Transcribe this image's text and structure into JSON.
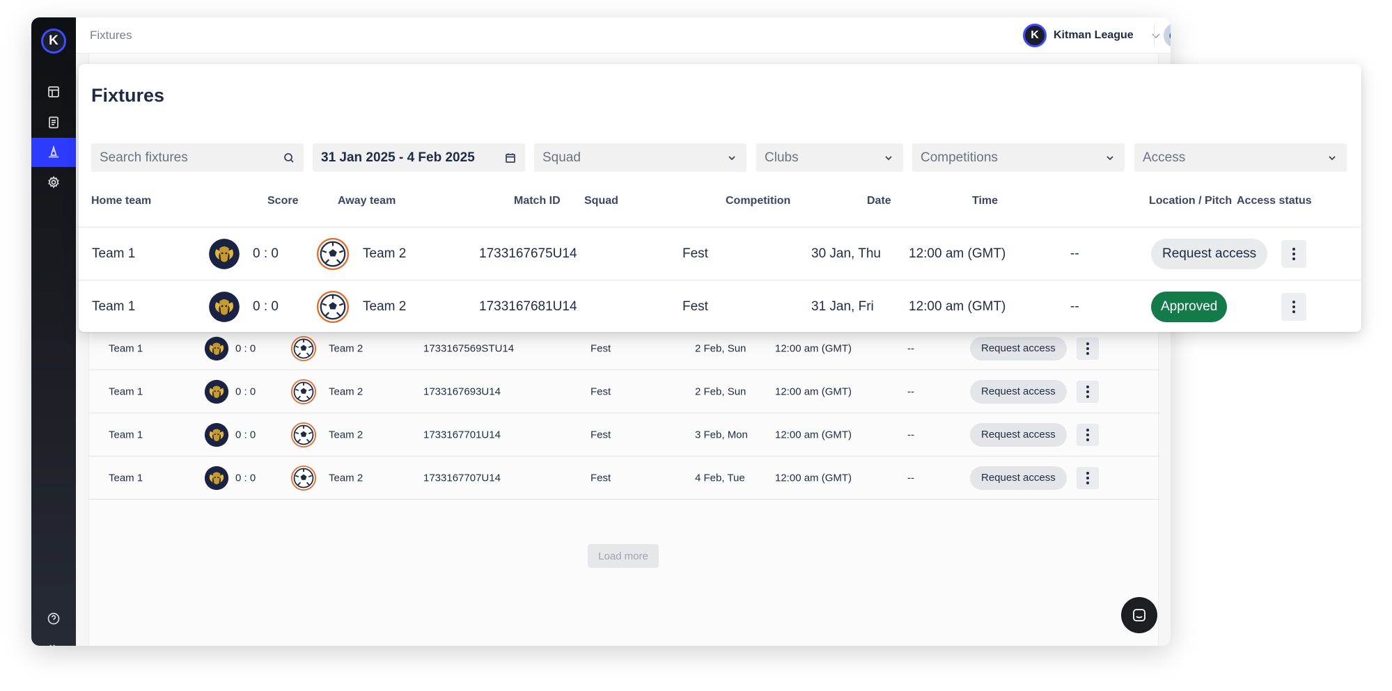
{
  "breadcrumb": "Fixtures",
  "organization": {
    "name": "Kitman League",
    "logo_letter": "K"
  },
  "user": {
    "initials": "CD"
  },
  "sidebar": {
    "logo_letter": "K",
    "items": [
      {
        "icon": "layout-icon"
      },
      {
        "icon": "document-icon"
      },
      {
        "icon": "cone-icon",
        "active": true
      },
      {
        "icon": "gear-icon"
      }
    ],
    "bottom_items": [
      {
        "icon": "help-icon"
      },
      {
        "icon": "expand-icon"
      }
    ]
  },
  "card": {
    "title": "Fixtures",
    "filters": {
      "search_placeholder": "Search fixtures",
      "date_range": "31 Jan 2025 - 4 Feb 2025",
      "squad": "Squad",
      "clubs": "Clubs",
      "competitions": "Competitions",
      "access": "Access"
    },
    "columns": {
      "home_team": "Home team",
      "score": "Score",
      "away_team": "Away team",
      "match_id": "Match ID",
      "squad": "Squad",
      "competition": "Competition",
      "date": "Date",
      "time": "Time",
      "location": "Location / Pitch",
      "access_status": "Access status"
    },
    "rows": [
      {
        "home": "Team 1",
        "score": "0 : 0",
        "away": "Team 2",
        "match_id": "1733167675U14",
        "competition": "Fest",
        "date": "30 Jan, Thu",
        "time": "12:00 am (GMT)",
        "location": "--",
        "access": "Request access"
      },
      {
        "home": "Team 1",
        "score": "0 : 0",
        "away": "Team 2",
        "match_id": "1733167681U14",
        "competition": "Fest",
        "date": "31 Jan, Fri",
        "time": "12:00 am (GMT)",
        "location": "--",
        "access": "Approved"
      }
    ]
  },
  "background_rows": [
    {
      "home": "Team 1",
      "score": "0 : 0",
      "away": "Team 2",
      "match_id": "1733167569STU14",
      "competition": "Fest",
      "date": "2 Feb, Sun",
      "time": "12:00 am (GMT)",
      "location": "--",
      "access": "Request access"
    },
    {
      "home": "Team 1",
      "score": "0 : 0",
      "away": "Team 2",
      "match_id": "1733167693U14",
      "competition": "Fest",
      "date": "2 Feb, Sun",
      "time": "12:00 am (GMT)",
      "location": "--",
      "access": "Request access"
    },
    {
      "home": "Team 1",
      "score": "0 : 0",
      "away": "Team 2",
      "match_id": "1733167701U14",
      "competition": "Fest",
      "date": "3 Feb, Mon",
      "time": "12:00 am (GMT)",
      "location": "--",
      "access": "Request access"
    },
    {
      "home": "Team 1",
      "score": "0 : 0",
      "away": "Team 2",
      "match_id": "1733167707U14",
      "competition": "Fest",
      "date": "4 Feb, Tue",
      "time": "12:00 am (GMT)",
      "location": "--",
      "access": "Request access"
    }
  ],
  "load_more": "Load more",
  "colors": {
    "accent": "#2d3bff",
    "approved": "#137a4a",
    "sidebar": "#15171c"
  }
}
